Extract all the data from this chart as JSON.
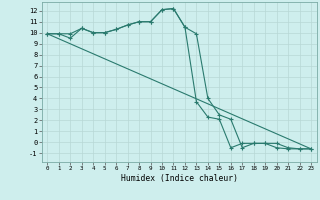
{
  "xlabel": "Humidex (Indice chaleur)",
  "xlim": [
    -0.5,
    23.5
  ],
  "ylim": [
    -1.8,
    12.8
  ],
  "xticks": [
    0,
    1,
    2,
    3,
    4,
    5,
    6,
    7,
    8,
    9,
    10,
    11,
    12,
    13,
    14,
    15,
    16,
    17,
    18,
    19,
    20,
    21,
    22,
    23
  ],
  "yticks": [
    -1,
    0,
    1,
    2,
    3,
    4,
    5,
    6,
    7,
    8,
    9,
    10,
    11,
    12
  ],
  "bg_color": "#ceeeed",
  "grid_color": "#b8d8d5",
  "line_color": "#2a7a6e",
  "line1_x": [
    0,
    1,
    2,
    3,
    4,
    5,
    6,
    7,
    8,
    9,
    10,
    11,
    12,
    13,
    14,
    15,
    16,
    17,
    18,
    19,
    20,
    21,
    22,
    23
  ],
  "line1_y": [
    9.9,
    9.9,
    9.5,
    10.4,
    10.0,
    10.0,
    10.3,
    10.7,
    11.0,
    11.0,
    12.1,
    12.2,
    10.5,
    9.9,
    4.0,
    2.5,
    2.1,
    -0.5,
    -0.1,
    -0.1,
    -0.1,
    -0.5,
    -0.6,
    -0.6
  ],
  "line2_x": [
    0,
    1,
    2,
    3,
    4,
    5,
    6,
    7,
    8,
    9,
    10,
    11,
    12,
    13,
    14,
    15,
    16,
    17,
    18,
    19,
    20,
    21,
    22,
    23
  ],
  "line2_y": [
    9.9,
    9.9,
    9.9,
    10.4,
    10.0,
    10.0,
    10.3,
    10.7,
    11.0,
    11.0,
    12.1,
    12.2,
    10.5,
    3.7,
    2.3,
    2.1,
    -0.5,
    -0.1,
    -0.1,
    -0.1,
    -0.5,
    -0.6,
    -0.6,
    -0.6
  ],
  "line3_x": [
    0,
    23
  ],
  "line3_y": [
    9.9,
    -0.6
  ],
  "tick_fontsize_x": 4.2,
  "tick_fontsize_y": 5.0,
  "xlabel_fontsize": 5.8
}
